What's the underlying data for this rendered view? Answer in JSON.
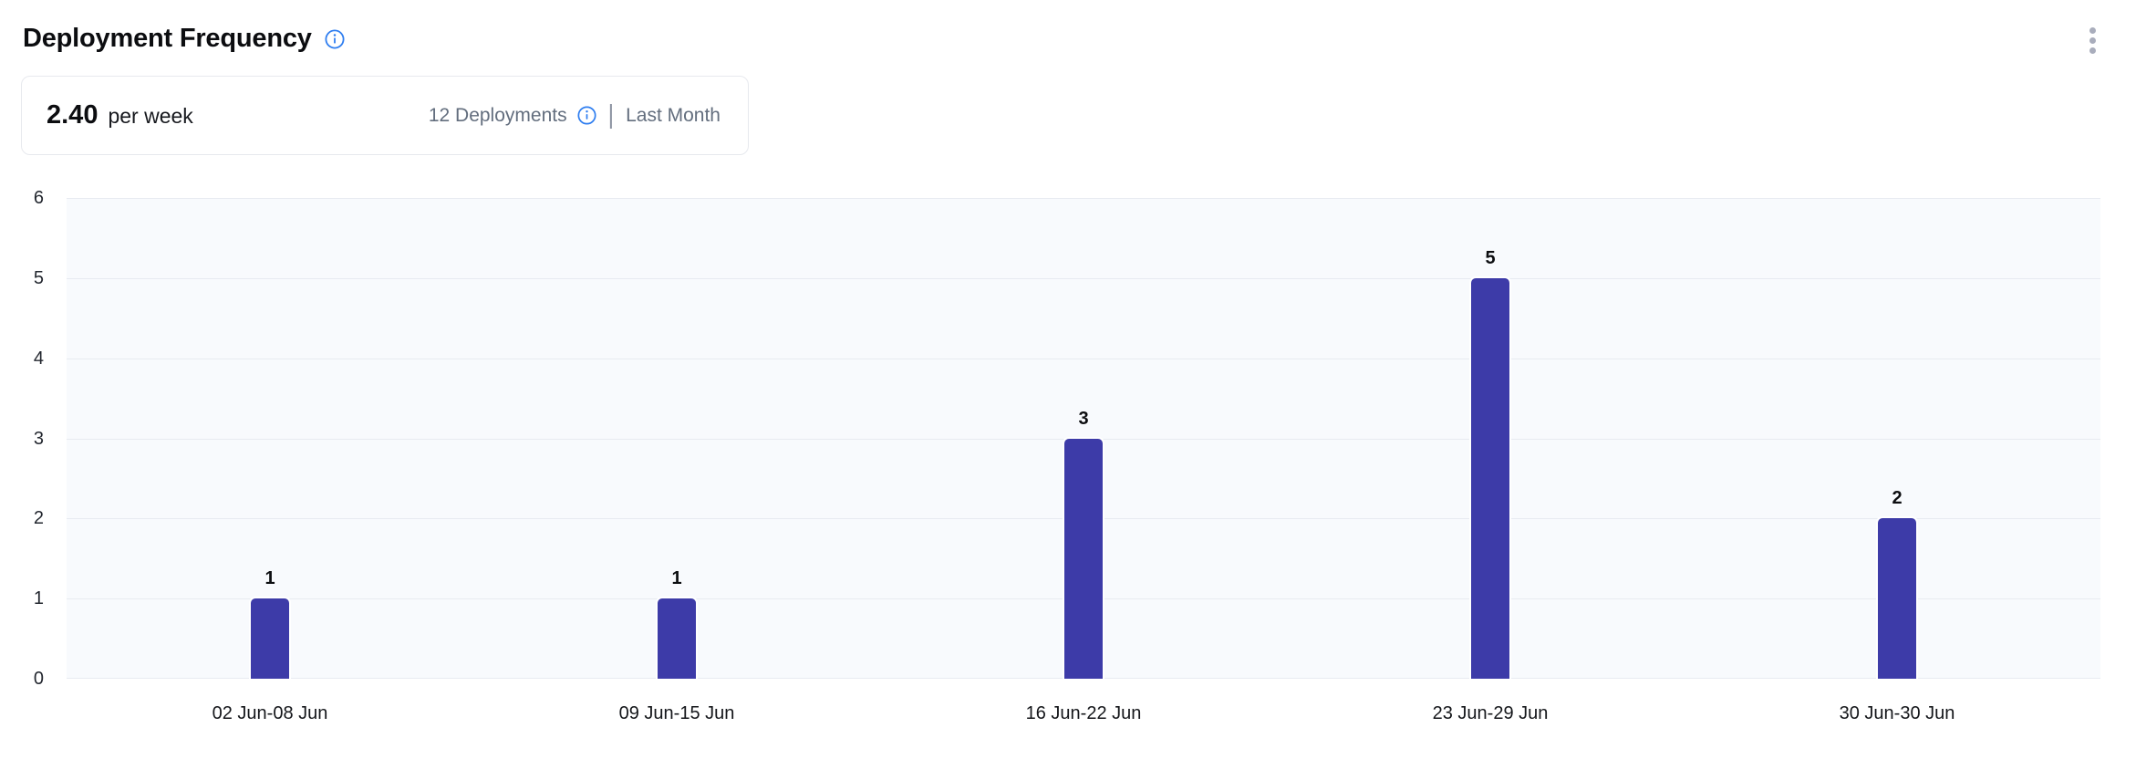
{
  "header": {
    "title": "Deployment Frequency"
  },
  "summary": {
    "value": "2.40",
    "unit": "per week",
    "deployments_label": "12 Deployments",
    "divider": "|",
    "period_label": "Last Month"
  },
  "chart_data": {
    "type": "bar",
    "title": "Deployment Frequency",
    "categories": [
      "02 Jun-08 Jun",
      "09 Jun-15 Jun",
      "16 Jun-22 Jun",
      "23 Jun-29 Jun",
      "30 Jun-30 Jun"
    ],
    "values": [
      1,
      1,
      3,
      5,
      2
    ],
    "xlabel": "",
    "ylabel": "",
    "ylim": [
      0,
      6
    ],
    "yticks": [
      0,
      1,
      2,
      3,
      4,
      5,
      6
    ],
    "grid": true,
    "legend": false,
    "value_labels": true,
    "bar_color": "#3d3ba8",
    "plot_background": "#f8fafd",
    "gridline_color": "#e8ebf1"
  },
  "colors": {
    "accent_info": "#2f7ef0",
    "bar": "#3d3ba8",
    "muted_text": "#636e7e",
    "kebab_dots": "#a9adbc"
  },
  "icons": {
    "title_info": "info-icon",
    "deployments_info": "info-icon",
    "menu": "kebab-menu-icon"
  }
}
